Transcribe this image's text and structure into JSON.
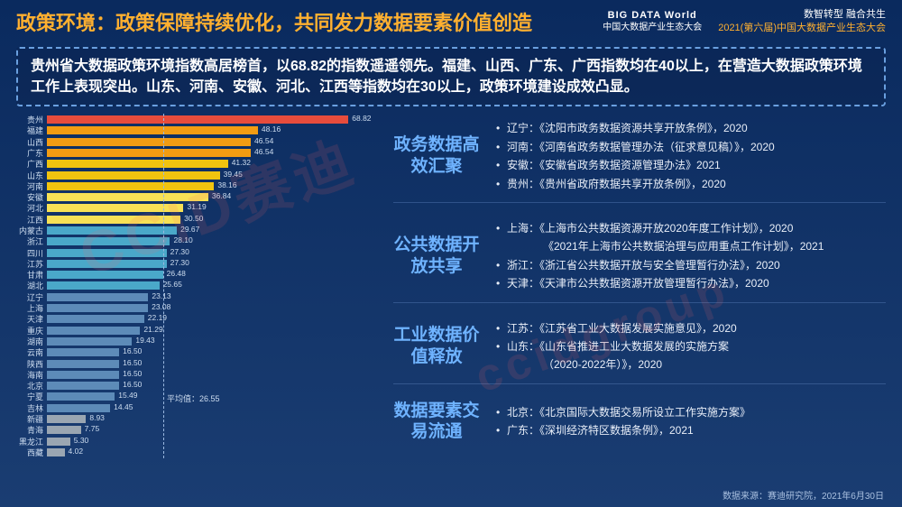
{
  "header": {
    "title": "政策环境：政策保障持续优化，共同发力数据要素价值创造",
    "logo1_top": "BIG DATA World",
    "logo1_bottom": "中国大数据产业生态大会",
    "tagline1": "数智转型 融合共生",
    "tagline2": "2021(第六届)中国大数据产业生态大会"
  },
  "summary": "贵州省大数据政策环境指数高居榜首，以68.82的指数遥遥领先。福建、山西、广东、广西指数均在40以上，在营造大数据政策环境工作上表现突出。山东、河南、安徽、河北、江西等指数均在30以上，政策环境建设成效凸显。",
  "chart": {
    "type": "bar-horizontal",
    "xmax": 70,
    "average": 26.55,
    "average_label": "平均值：26.55",
    "label_color": "#cdddf0",
    "label_fontsize": 9,
    "value_fontsize": 8.5,
    "colors": {
      "red": "#e74c3c",
      "orange": "#f39c12",
      "gold": "#f1c40f",
      "yellow": "#f7e155",
      "cyan": "#4aa8c9",
      "blue": "#5d8bb8",
      "gray": "#9aa6b2"
    },
    "bars": [
      {
        "label": "贵州",
        "value": 68.82,
        "color": "red"
      },
      {
        "label": "福建",
        "value": 48.16,
        "color": "orange"
      },
      {
        "label": "山西",
        "value": 46.54,
        "color": "orange"
      },
      {
        "label": "广东",
        "value": 46.54,
        "color": "orange"
      },
      {
        "label": "广西",
        "value": 41.32,
        "color": "gold"
      },
      {
        "label": "山东",
        "value": 39.45,
        "color": "gold"
      },
      {
        "label": "河南",
        "value": 38.16,
        "color": "gold"
      },
      {
        "label": "安徽",
        "value": 36.84,
        "color": "yellow"
      },
      {
        "label": "河北",
        "value": 31.19,
        "color": "yellow"
      },
      {
        "label": "江西",
        "value": 30.5,
        "color": "yellow"
      },
      {
        "label": "内蒙古",
        "value": 29.67,
        "color": "cyan"
      },
      {
        "label": "浙江",
        "value": 28.1,
        "color": "cyan"
      },
      {
        "label": "四川",
        "value": 27.3,
        "color": "cyan"
      },
      {
        "label": "江苏",
        "value": 27.3,
        "color": "cyan"
      },
      {
        "label": "甘肃",
        "value": 26.48,
        "color": "cyan"
      },
      {
        "label": "湖北",
        "value": 25.65,
        "color": "cyan"
      },
      {
        "label": "辽宁",
        "value": 23.13,
        "color": "blue"
      },
      {
        "label": "上海",
        "value": 23.08,
        "color": "blue"
      },
      {
        "label": "天津",
        "value": 22.19,
        "color": "blue"
      },
      {
        "label": "重庆",
        "value": 21.29,
        "color": "blue"
      },
      {
        "label": "湖南",
        "value": 19.43,
        "color": "blue"
      },
      {
        "label": "云南",
        "value": 16.5,
        "color": "blue"
      },
      {
        "label": "陕西",
        "value": 16.5,
        "color": "blue"
      },
      {
        "label": "海南",
        "value": 16.5,
        "color": "blue"
      },
      {
        "label": "北京",
        "value": 16.5,
        "color": "blue"
      },
      {
        "label": "宁夏",
        "value": 15.49,
        "color": "blue"
      },
      {
        "label": "吉林",
        "value": 14.45,
        "color": "blue"
      },
      {
        "label": "新疆",
        "value": 8.93,
        "color": "gray"
      },
      {
        "label": "青海",
        "value": 7.75,
        "color": "gray"
      },
      {
        "label": "黑龙江",
        "value": 5.3,
        "color": "gray"
      },
      {
        "label": "西藏",
        "value": 4.02,
        "color": "gray"
      }
    ]
  },
  "sections": [
    {
      "title": "政务数据高效汇聚",
      "items": [
        "辽宁：《沈阳市政务数据资源共享开放条例》，2020",
        "河南：《河南省政务数据管理办法（征求意见稿）》，2020",
        "安徽：《安徽省政务数据资源管理办法》2021",
        "贵州：《贵州省政府数据共享开放条例》，2020"
      ]
    },
    {
      "title": "公共数据开放共享",
      "items": [
        "上海：《上海市公共数据资源开放2020年度工作计划》，2020",
        "_indent_《2021年上海市公共数据治理与应用重点工作计划》，2021",
        "浙江：《浙江省公共数据开放与安全管理暂行办法》，2020",
        "天津：《天津市公共数据资源开放管理暂行办法》，2020"
      ]
    },
    {
      "title": "工业数据价值释放",
      "items": [
        "江苏：《江苏省工业大数据发展实施意见》，2020",
        "山东：《山东省推进工业大数据发展的实施方案",
        "_indent_（2020-2022年）》，2020"
      ]
    },
    {
      "title": "数据要素交易流通",
      "items": [
        "北京：《北京国际大数据交易所设立工作实施方案》",
        "广东：《深圳经济特区数据条例》，2021"
      ]
    }
  ],
  "footer": {
    "source": "数据来源：赛迪研究院，2021年6月30日"
  },
  "watermark": "CCID赛迪"
}
